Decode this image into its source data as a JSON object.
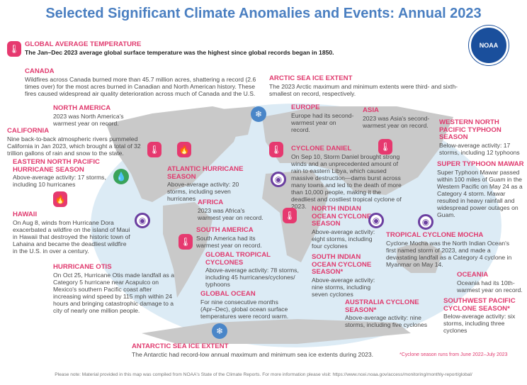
{
  "title": "Selected Significant Climate Anomalies and Events: Annual 2023",
  "logo_text": "NOAA",
  "colors": {
    "title": "#4a7fc1",
    "heading": "#e03a6e",
    "temperature": "#e6396f",
    "precipitation": "#3aa35a",
    "cyclone": "#6b3fa0",
    "ice": "#4a86c8",
    "ocean": "#dcebf5",
    "land": "#c9c9c9"
  },
  "events": {
    "global_temp": {
      "title": "GLOBAL AVERAGE TEMPERATURE",
      "body": "The Jan–Dec 2023 average global surface temperature was the highest since global records began in 1850.",
      "icon": "thermometer-icon"
    },
    "canada": {
      "title": "CANADA",
      "body": "Wildfires across Canada burned more than 45.7 million acres, shattering a record (2.6 times over) for the most acres burned in Canadian and North American history. These fires caused widespread air quality deterioration across much of Canada and the U.S.",
      "icon": "fire-icon"
    },
    "north_america": {
      "title": "NORTH AMERICA",
      "body": "2023 was North America's warmest year on record.",
      "icon": "thermometer-icon"
    },
    "california": {
      "title": "CALIFORNIA",
      "body": "Nine back-to-back atmospheric rivers pummeled California in Jan 2023, which brought a total of 32 trillion gallons of rain and snow to the state.",
      "icon": "raindrops-icon"
    },
    "enp": {
      "title": "EASTERN NORTH PACIFIC HURRICANE SEASON",
      "body": "Above-average activity: 17 storms, including 10 hurricanes"
    },
    "hawaii": {
      "title": "HAWAII",
      "body": "On Aug 8, winds from Hurricane Dora exacerbated a wildfire on the island of Maui in Hawaii that destroyed the historic town of Lahaina and became the deadliest wildfire in the U.S. in over a century.",
      "icon": "fire-icon"
    },
    "otis": {
      "title": "HURRICANE OTIS",
      "body": "On Oct 25, Hurricane Otis made landfall as a Category 5 hurricane near Acapulco on Mexico's southern Pacific coast after increasing wind speed by 115 mph within 24 hours and bringing catastrophic damage to a city of nearly one million people.",
      "icon": "cyclone-icon"
    },
    "atlantic": {
      "title": "ATLANTIC HURRICANE SEASON",
      "body": "Above-average activity: 20 storms, including seven hurricanes"
    },
    "africa": {
      "title": "AFRICA",
      "body": "2023 was Africa's warmest year on record.",
      "icon": "thermometer-icon"
    },
    "south_america": {
      "title": "SOUTH AMERICA",
      "body": "South America had its warmest year on record.",
      "icon": "thermometer-icon"
    },
    "global_tc": {
      "title": "GLOBAL TROPICAL CYCLONES",
      "body": "Above-average activity: 78 storms, including 45 hurricanes/cyclones/ typhoons"
    },
    "global_ocean": {
      "title": "GLOBAL OCEAN",
      "body": "For nine consecutive months (Apr–Dec), global ocean surface temperatures were record warm."
    },
    "antarctic": {
      "title": "ANTARCTIC SEA ICE EXTENT",
      "body": "The Antarctic had record-low annual maximum and minimum sea ice extents during 2023.",
      "icon": "sea-ice-icon"
    },
    "arctic": {
      "title": "ARCTIC SEA ICE EXTENT",
      "body": "The 2023 Arctic maximum and minimum extents were third- and sixth-smallest on record, respectively.",
      "icon": "sea-ice-icon"
    },
    "europe": {
      "title": "EUROPE",
      "body": "Europe had its second-warmest year on record.",
      "icon": "thermometer-icon"
    },
    "asia": {
      "title": "ASIA",
      "body": "2023 was Asia's second-warmest year on record.",
      "icon": "thermometer-icon"
    },
    "wnp": {
      "title": "WESTERN NORTH PACIFIC TYPHOON SEASON",
      "body": "Below-average activity: 17 storms, including 12 typhoons"
    },
    "daniel": {
      "title": "CYCLONE DANIEL",
      "body": "On Sep 10, Storm Daniel brought strong winds and an unprecedented amount of rain to eastern Libya, which caused massive destruction—dams burst across many towns and led to the death of more than 10,000 people, making it the deadliest and costliest tropical cyclone of 2023.",
      "icon": "cyclone-icon"
    },
    "mawar": {
      "title": "SUPER TYPHOON MAWAR",
      "body": "Super Typhoon Mawar passed within 100 miles of Guam in the Western Pacific on May 24 as a Category 4 storm. Mawar resulted in heavy rainfall and widespread power outages on Guam.",
      "icon": "cyclone-icon"
    },
    "nio": {
      "title": "NORTH INDIAN OCEAN CYCLONE SEASON",
      "body": "Above-average activity: eight storms, including four cyclones"
    },
    "mocha": {
      "title": "TROPICAL CYCLONE MOCHA",
      "body": "Cyclone Mocha was the North Indian Ocean's first named storm of 2023, and made a devastating landfall as a Category 4 cyclone in Myanmar on May 14.",
      "icon": "cyclone-icon"
    },
    "sio": {
      "title": "SOUTH INDIAN OCEAN CYCLONE SEASON*",
      "body": "Above-average activity: nine storms, including seven cyclones"
    },
    "oceania": {
      "title": "OCEANIA",
      "body": "Oceania had its 10th-warmest year on record."
    },
    "australia": {
      "title": "AUSTRALIA CYCLONE SEASON*",
      "body": "Above-average activity: nine storms, including five cyclones"
    },
    "swp": {
      "title": "SOUTHWEST PACIFIC CYCLONE SEASON*",
      "body": "Below-average activity: six storms, including three cyclones"
    }
  },
  "footnote": "*Cyclone season runs from June 2022–July 2023",
  "note": "Please note: Material provided in this map was compiled from NOAA's State of the Climate Reports. For more information please visit: https://www.ncei.noaa.gov/access/monitoring/monthly-report/global/"
}
